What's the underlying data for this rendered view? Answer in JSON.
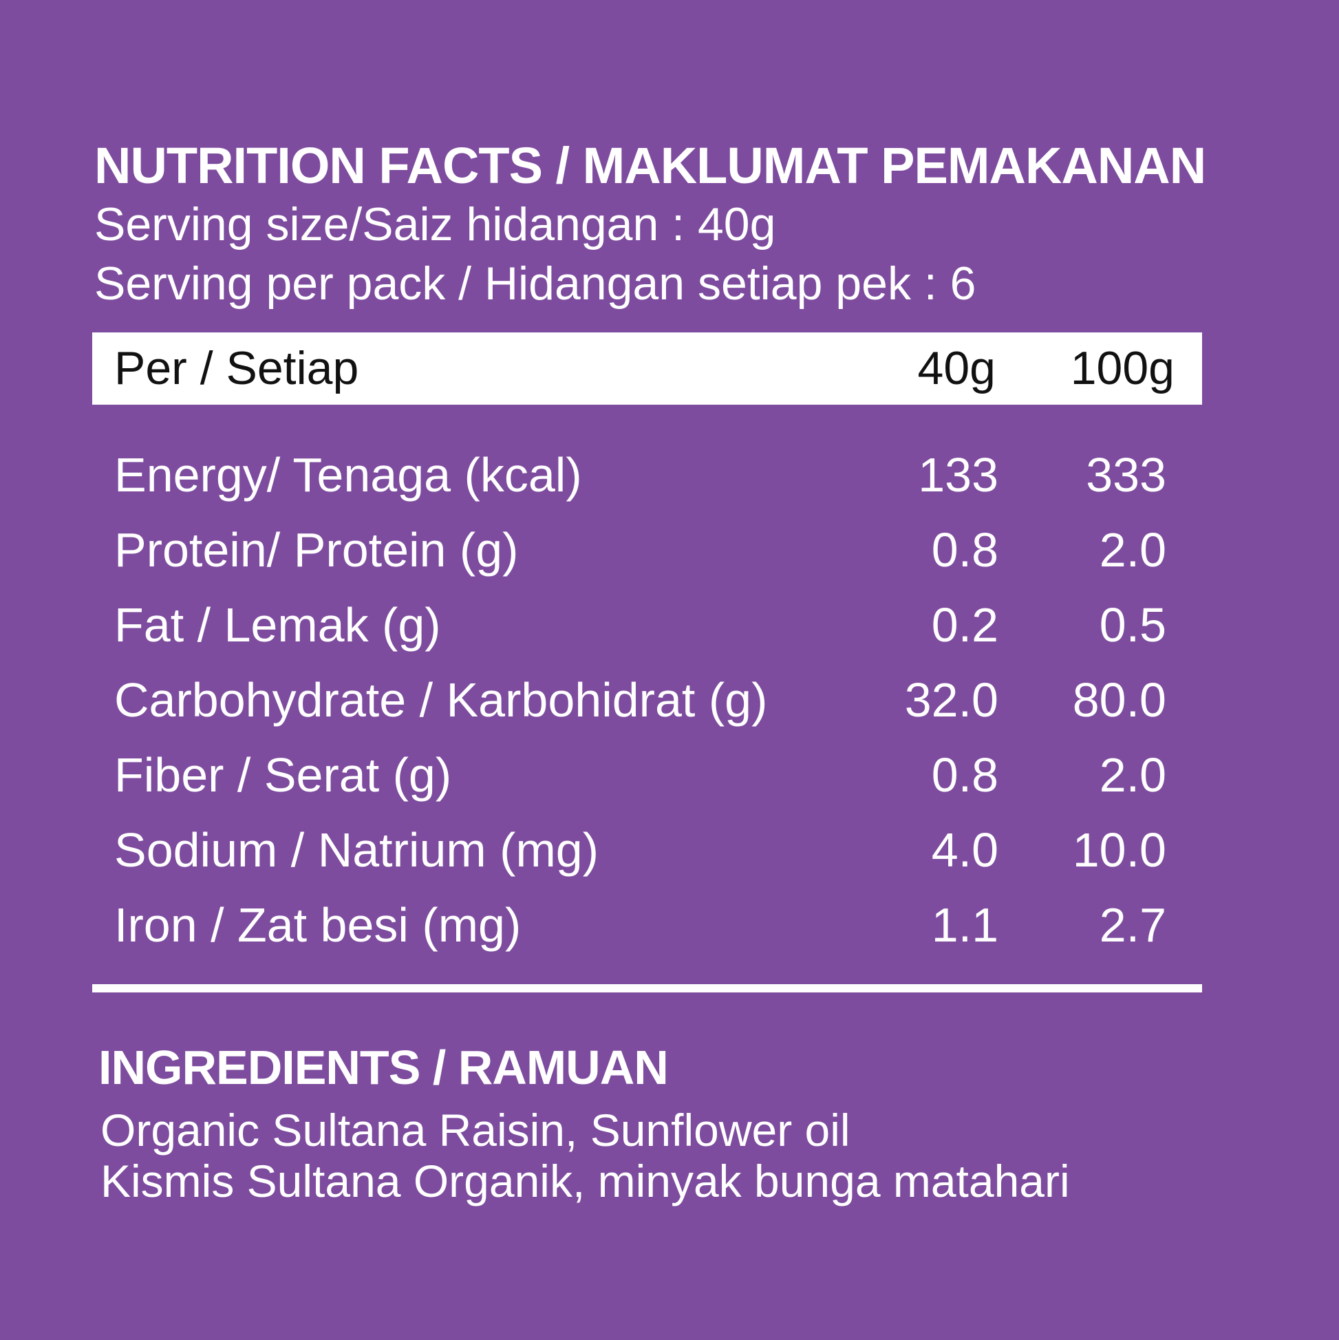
{
  "nutrition": {
    "title": "NUTRITION FACTS / MAKLUMAT PEMAKANAN",
    "serving_size": "Serving size/Saiz hidangan : 40g",
    "servings_per_pack": "Serving per pack / Hidangan setiap pek : 6",
    "header": {
      "label": "Per / Setiap",
      "col1": "40g",
      "col2": "100g"
    },
    "rows": [
      {
        "label": "Energy/ Tenaga (kcal)",
        "v40": "133",
        "v100": "333"
      },
      {
        "label": "Protein/ Protein (g)",
        "v40": "0.8",
        "v100": "2.0"
      },
      {
        "label": "Fat / Lemak (g)",
        "v40": "0.2",
        "v100": "0.5"
      },
      {
        "label": "Carbohydrate / Karbohidrat (g)",
        "v40": "32.0",
        "v100": "80.0"
      },
      {
        "label": "Fiber / Serat (g)",
        "v40": "0.8",
        "v100": "2.0"
      },
      {
        "label": "Sodium / Natrium (mg)",
        "v40": "4.0",
        "v100": "10.0"
      },
      {
        "label": "Iron / Zat besi (mg)",
        "v40": "1.1",
        "v100": "2.7"
      }
    ]
  },
  "ingredients": {
    "title": "INGREDIENTS / RAMUAN",
    "line_en": "Organic Sultana Raisin, Sunflower oil",
    "line_ms": "Kismis Sultana Organik, minyak bunga matahari"
  },
  "colors": {
    "background": "#7e4c9e",
    "text": "#ffffff",
    "header_bar": "#ffffff",
    "header_text": "#111111"
  }
}
